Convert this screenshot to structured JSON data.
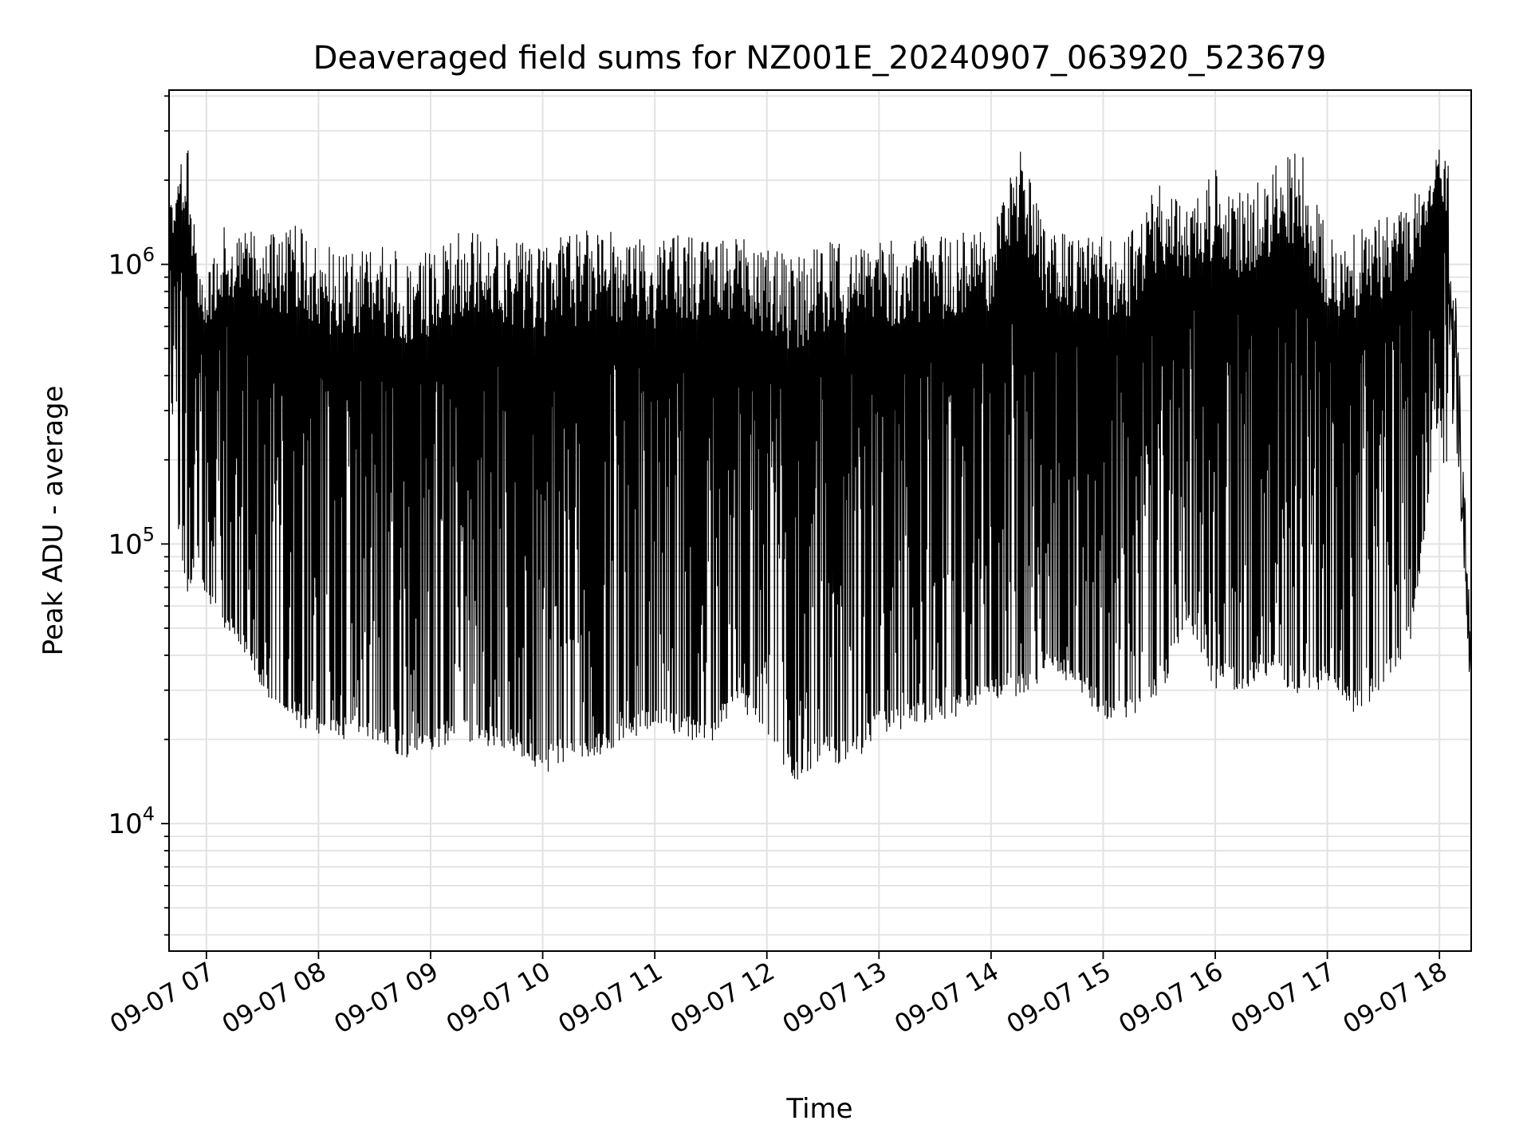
{
  "chart_data": {
    "type": "line",
    "title": "Deaveraged field sums for NZ001E_20240907_063920_523679",
    "xlabel": "Time",
    "ylabel": "Peak ADU - average",
    "yscale": "log",
    "ylim": [
      3500,
      4200000
    ],
    "xlim": [
      "09-07 06:40",
      "09-07 18:17"
    ],
    "x_tick_labels": [
      "09-07 07",
      "09-07 08",
      "09-07 09",
      "09-07 10",
      "09-07 11",
      "09-07 12",
      "09-07 13",
      "09-07 14",
      "09-07 15",
      "09-07 16",
      "09-07 17",
      "09-07 18"
    ],
    "y_ticks": [
      {
        "value": 10000,
        "base": "10",
        "exp": "4"
      },
      {
        "value": 100000,
        "base": "10",
        "exp": "5"
      },
      {
        "value": 1000000,
        "base": "10",
        "exp": "6"
      }
    ],
    "grid": true,
    "line_color": "#000000",
    "series": [
      {
        "name": "",
        "x": [
          "09-07 06:40",
          "09-07 06:45",
          "09-07 06:50",
          "09-07 06:55",
          "09-07 07:00",
          "09-07 07:10",
          "09-07 07:20",
          "09-07 07:30",
          "09-07 07:40",
          "09-07 07:50",
          "09-07 08:00",
          "09-07 08:15",
          "09-07 08:30",
          "09-07 08:45",
          "09-07 09:00",
          "09-07 09:15",
          "09-07 09:30",
          "09-07 09:45",
          "09-07 10:00",
          "09-07 10:15",
          "09-07 10:30",
          "09-07 10:45",
          "09-07 11:00",
          "09-07 11:15",
          "09-07 11:30",
          "09-07 11:45",
          "09-07 12:00",
          "09-07 12:15",
          "09-07 12:30",
          "09-07 12:45",
          "09-07 13:00",
          "09-07 13:15",
          "09-07 13:30",
          "09-07 13:45",
          "09-07 14:00",
          "09-07 14:15",
          "09-07 14:30",
          "09-07 14:45",
          "09-07 15:00",
          "09-07 15:15",
          "09-07 15:30",
          "09-07 15:45",
          "09-07 16:00",
          "09-07 16:15",
          "09-07 16:30",
          "09-07 16:45",
          "09-07 17:00",
          "09-07 17:15",
          "09-07 17:30",
          "09-07 17:45",
          "09-07 18:00",
          "09-07 18:05",
          "09-07 18:10",
          "09-07 18:15",
          "09-07 18:17"
        ],
        "high": [
          1600000,
          2200000,
          3100000,
          1000000,
          900000,
          1400000,
          1300000,
          1400000,
          1300000,
          1400000,
          1200000,
          1100000,
          1200000,
          1100000,
          1100000,
          1300000,
          1300000,
          1200000,
          1200000,
          1300000,
          1350000,
          1300000,
          1200000,
          1300000,
          1200000,
          1350000,
          1150000,
          1050000,
          1200000,
          1200000,
          1200000,
          1300000,
          1250000,
          1300000,
          1350000,
          2800000,
          1300000,
          1300000,
          1300000,
          1300000,
          2000000,
          1600000,
          2200000,
          1800000,
          2300000,
          2700000,
          1300000,
          1300000,
          1500000,
          1700000,
          2600000,
          2300000,
          600000,
          90000,
          40000
        ],
        "low": [
          450000,
          110000,
          65000,
          90000,
          60000,
          50000,
          40000,
          30000,
          25000,
          22000,
          21000,
          20000,
          20000,
          17000,
          18000,
          20000,
          19000,
          18000,
          15000,
          17000,
          17000,
          20000,
          22000,
          20000,
          19000,
          28000,
          18000,
          14000,
          17000,
          16000,
          21000,
          22000,
          23000,
          24000,
          28000,
          28000,
          34000,
          32000,
          23000,
          24000,
          28000,
          50000,
          30000,
          30000,
          34000,
          28000,
          31000,
          24000,
          30000,
          45000,
          300000,
          100000,
          80000,
          28000,
          14000
        ]
      }
    ]
  }
}
